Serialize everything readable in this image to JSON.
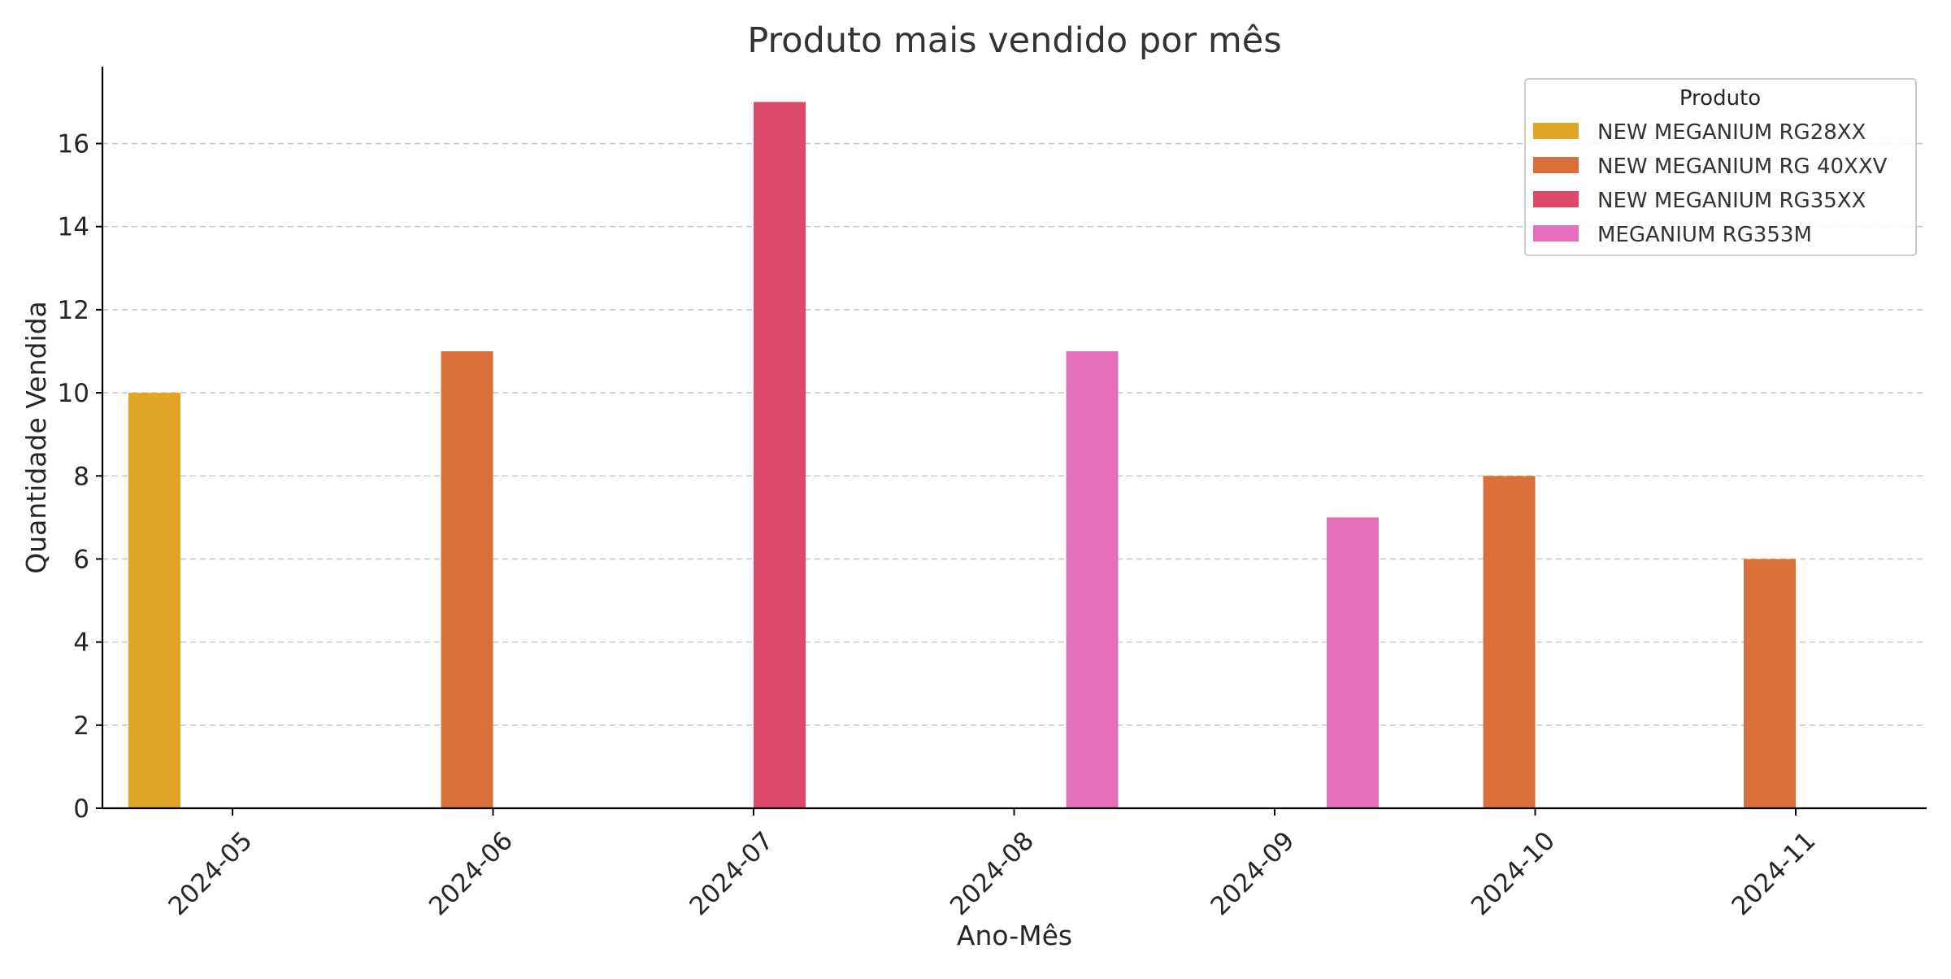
{
  "chart_data": {
    "type": "bar",
    "title": "Produto mais vendido por mês",
    "xlabel": "Ano-Mês",
    "ylabel": "Quantidade Vendida",
    "categories": [
      "2024-05",
      "2024-06",
      "2024-07",
      "2024-08",
      "2024-09",
      "2024-10",
      "2024-11"
    ],
    "series": [
      {
        "name": "NEW MEGANIUM RG28XX",
        "color": "#e0a526",
        "values": [
          10,
          0,
          0,
          0,
          0,
          0,
          0
        ]
      },
      {
        "name": "NEW MEGANIUM RG 40XXV",
        "color": "#dc703b",
        "values": [
          0,
          11,
          0,
          0,
          0,
          8,
          6
        ]
      },
      {
        "name": "NEW MEGANIUM RG35XX",
        "color": "#dc4a67",
        "values": [
          0,
          0,
          17,
          0,
          0,
          0,
          0
        ]
      },
      {
        "name": "MEGANIUM RG353M",
        "color": "#e46dbc",
        "values": [
          0,
          0,
          0,
          11,
          7,
          0,
          0
        ]
      }
    ],
    "ylim": [
      0,
      17.85
    ],
    "yticks": [
      0,
      2,
      4,
      6,
      8,
      10,
      12,
      14,
      16
    ],
    "grid": "y-dashed",
    "legend": {
      "title": "Produto",
      "placement": "top-right"
    }
  }
}
